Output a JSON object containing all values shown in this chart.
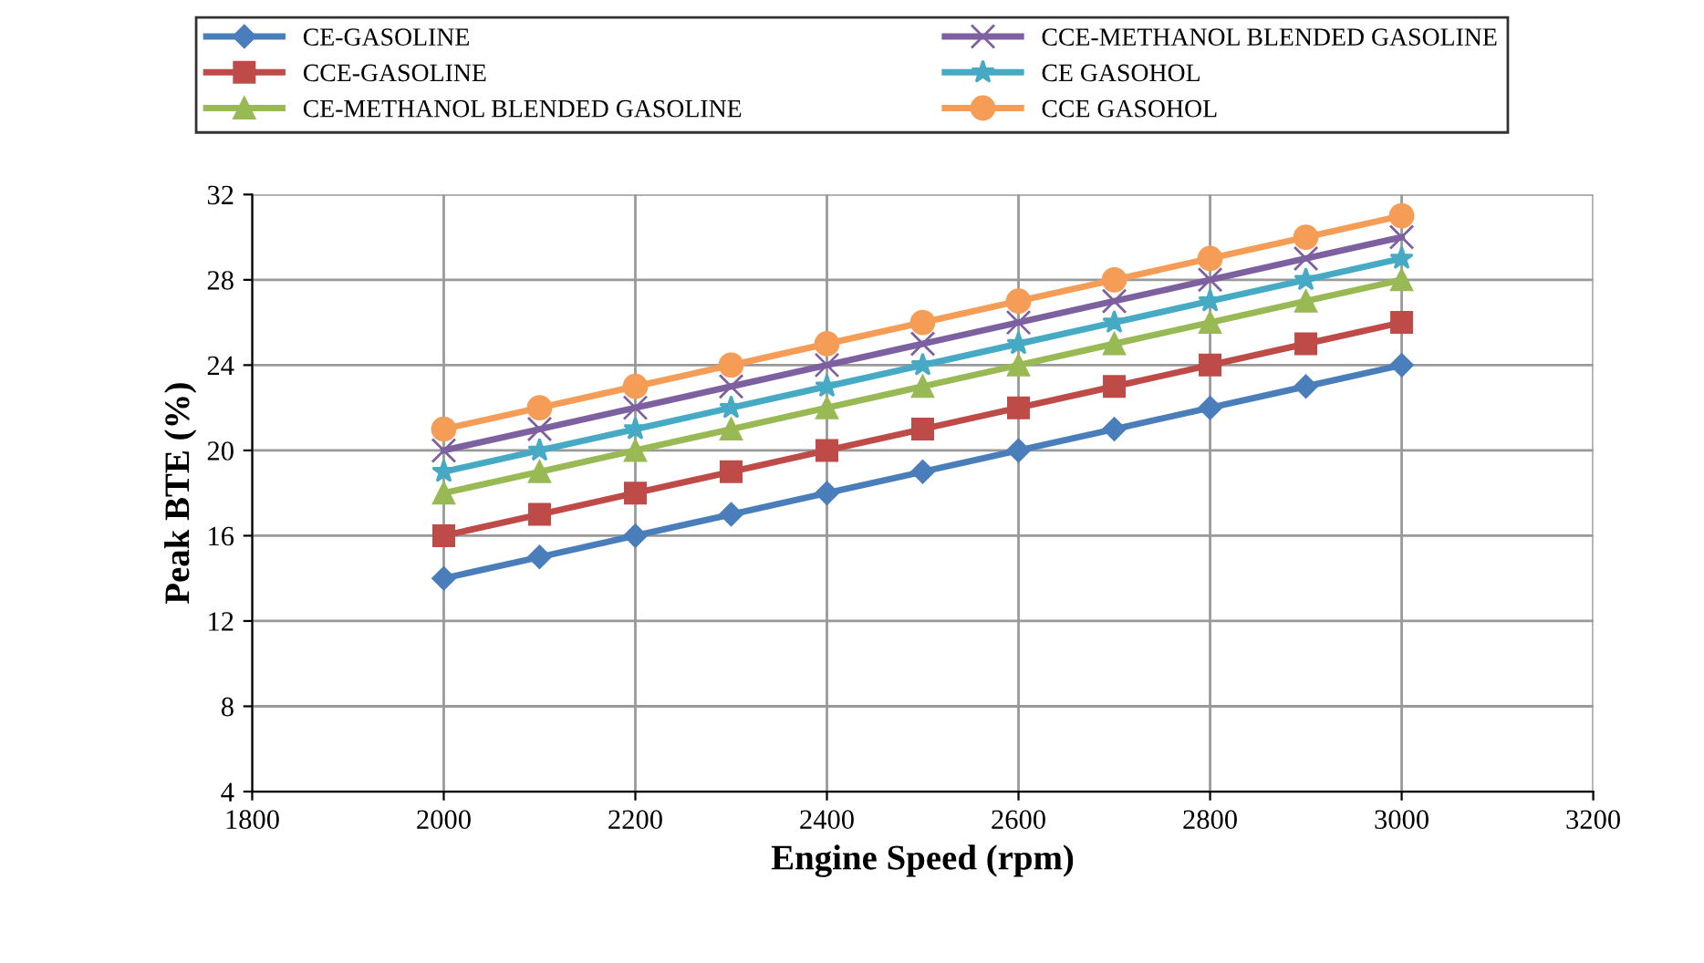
{
  "chart_data": {
    "type": "line",
    "xlabel": "Engine Speed (rpm)",
    "ylabel": "Peak BTE (%)",
    "x": [
      2000,
      2100,
      2200,
      2300,
      2400,
      2500,
      2600,
      2700,
      2800,
      2900,
      3000
    ],
    "series": [
      {
        "name": "CE-GASOLINE",
        "color": "#4a7ebb",
        "marker": "diamond",
        "values": [
          14,
          15,
          16,
          17,
          18,
          19,
          20,
          21,
          22,
          23,
          24
        ]
      },
      {
        "name": "CCE-GASOLINE",
        "color": "#be4b48",
        "marker": "square",
        "values": [
          16,
          17,
          18,
          19,
          20,
          21,
          22,
          23,
          24,
          25,
          26
        ]
      },
      {
        "name": "CE-METHANOL BLENDED GASOLINE",
        "color": "#98b954",
        "marker": "triangle",
        "values": [
          18,
          19,
          20,
          21,
          22,
          23,
          24,
          25,
          26,
          27,
          28
        ]
      },
      {
        "name": "CCE-METHANOL BLENDED GASOLINE",
        "color": "#7d60a0",
        "marker": "cross",
        "values": [
          20,
          21,
          22,
          23,
          24,
          25,
          26,
          27,
          28,
          29,
          30
        ]
      },
      {
        "name": "CE GASOHOL",
        "color": "#46aac5",
        "marker": "star",
        "values": [
          19,
          20,
          21,
          22,
          23,
          24,
          25,
          26,
          27,
          28,
          29
        ]
      },
      {
        "name": "CCE GASOHOL",
        "color": "#f59d56",
        "marker": "circle",
        "values": [
          21,
          22,
          23,
          24,
          25,
          26,
          27,
          28,
          29,
          30,
          31
        ]
      }
    ],
    "xlim": [
      1800,
      3200
    ],
    "xticks": [
      1800,
      2000,
      2200,
      2400,
      2600,
      2800,
      3000,
      3200
    ],
    "ylim": [
      4,
      32
    ],
    "yticks": [
      4,
      8,
      12,
      16,
      20,
      24,
      28,
      32
    ],
    "grid": true,
    "legend": "top",
    "line_style": "solid"
  }
}
